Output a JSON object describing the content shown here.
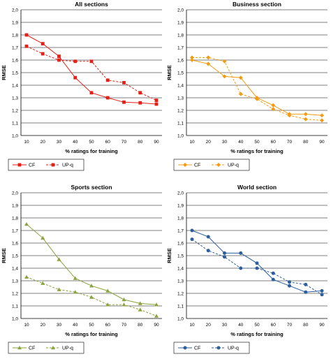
{
  "chart_data": [
    {
      "type": "line",
      "title": "All sections",
      "xlabel": "% ratings for training",
      "ylabel": "RMSE",
      "x": [
        10,
        20,
        30,
        40,
        50,
        60,
        70,
        80,
        90
      ],
      "xlim": [
        10,
        90
      ],
      "ylim": [
        1.0,
        2.0
      ],
      "yticks": [
        "1,0",
        "1,1",
        "1,2",
        "1,3",
        "1,4",
        "1,5",
        "1,6",
        "1,7",
        "1,8",
        "1,9",
        "2,0"
      ],
      "grid": "horizontal",
      "color": "#e32017",
      "marker": "square",
      "legend": "bottom-left",
      "series": [
        {
          "name": "CF",
          "style": "solid",
          "values": [
            1.8,
            1.73,
            1.63,
            1.46,
            1.34,
            1.3,
            1.265,
            1.26,
            1.25
          ]
        },
        {
          "name": "UP-q",
          "style": "dashed",
          "values": [
            1.71,
            1.65,
            1.6,
            1.59,
            1.59,
            1.44,
            1.42,
            1.34,
            1.28
          ]
        }
      ]
    },
    {
      "type": "line",
      "title": "Business section",
      "xlabel": "% ratings for training",
      "ylabel": "RMSE",
      "x": [
        10,
        20,
        30,
        40,
        50,
        60,
        70,
        80,
        90
      ],
      "xlim": [
        10,
        90
      ],
      "ylim": [
        1.0,
        2.0
      ],
      "yticks": [
        "1,0",
        "1,1",
        "1,2",
        "1,3",
        "1,4",
        "1,5",
        "1,6",
        "1,7",
        "1,8",
        "1,9",
        "2,0"
      ],
      "grid": "horizontal",
      "color": "#f39c12",
      "marker": "diamond",
      "legend": "bottom-left",
      "series": [
        {
          "name": "CF",
          "style": "solid",
          "values": [
            1.6,
            1.57,
            1.47,
            1.46,
            1.3,
            1.24,
            1.17,
            1.17,
            1.16
          ]
        },
        {
          "name": "UP-q",
          "style": "dashed",
          "values": [
            1.62,
            1.62,
            1.59,
            1.33,
            1.29,
            1.21,
            1.16,
            1.13,
            1.12
          ]
        }
      ]
    },
    {
      "type": "line",
      "title": "Sports section",
      "xlabel": "% ratings for training",
      "ylabel": "RMSE",
      "x": [
        10,
        20,
        30,
        40,
        50,
        60,
        70,
        80,
        90
      ],
      "xlim": [
        10,
        90
      ],
      "ylim": [
        1.0,
        2.0
      ],
      "yticks": [
        "1,0",
        "1,1",
        "1,2",
        "1,3",
        "1,4",
        "1,5",
        "1,6",
        "1,7",
        "1,8",
        "1,9",
        "2,0"
      ],
      "grid": "horizontal",
      "color": "#8aa33a",
      "marker": "triangle",
      "legend": "bottom-left",
      "series": [
        {
          "name": "CF",
          "style": "solid",
          "values": [
            1.75,
            1.64,
            1.47,
            1.32,
            1.26,
            1.22,
            1.15,
            1.12,
            1.11
          ]
        },
        {
          "name": "UP-q",
          "style": "dashed",
          "values": [
            1.33,
            1.28,
            1.23,
            1.21,
            1.17,
            1.11,
            1.11,
            1.07,
            1.02
          ]
        }
      ]
    },
    {
      "type": "line",
      "title": "World section",
      "xlabel": "% ratings for training",
      "ylabel": "RMSE",
      "x": [
        10,
        20,
        30,
        40,
        50,
        60,
        70,
        80,
        90
      ],
      "xlim": [
        10,
        90
      ],
      "ylim": [
        1.0,
        2.0
      ],
      "yticks": [
        "1,0",
        "1,1",
        "1,2",
        "1,3",
        "1,4",
        "1,5",
        "1,6",
        "1,7",
        "1,8",
        "1,9",
        "2,0"
      ],
      "grid": "horizontal",
      "color": "#2c5f9e",
      "marker": "circle",
      "legend": "bottom-left",
      "series": [
        {
          "name": "CF",
          "style": "solid",
          "values": [
            1.7,
            1.65,
            1.52,
            1.52,
            1.44,
            1.31,
            1.26,
            1.21,
            1.22
          ]
        },
        {
          "name": "UP-q",
          "style": "dashed",
          "values": [
            1.63,
            1.54,
            1.49,
            1.4,
            1.4,
            1.36,
            1.29,
            1.27,
            1.19
          ]
        }
      ]
    }
  ]
}
